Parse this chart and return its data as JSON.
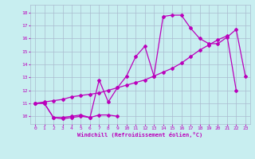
{
  "xlabel": "Windchill (Refroidissement éolien,°C)",
  "bg_color": "#c8eef0",
  "line_color": "#bb00bb",
  "grid_color": "#aabbd0",
  "xlim": [
    -0.5,
    23.5
  ],
  "ylim": [
    9.4,
    18.6
  ],
  "yticks": [
    10,
    11,
    12,
    13,
    14,
    15,
    16,
    17,
    18
  ],
  "xticks": [
    0,
    1,
    2,
    3,
    4,
    5,
    6,
    7,
    8,
    9,
    10,
    11,
    12,
    13,
    14,
    15,
    16,
    17,
    18,
    19,
    20,
    21,
    22,
    23
  ],
  "s1_x": [
    0,
    1,
    2,
    3,
    4,
    5,
    6,
    7,
    8,
    9
  ],
  "s1_y": [
    11.0,
    11.0,
    9.9,
    9.8,
    9.9,
    10.0,
    9.9,
    10.1,
    10.1,
    10.0
  ],
  "s2_x": [
    0,
    1,
    2,
    3,
    4,
    5,
    6,
    7,
    8,
    9,
    10,
    11,
    12,
    13,
    14,
    15,
    16,
    17,
    18,
    19,
    20,
    21,
    22
  ],
  "s2_y": [
    11.0,
    11.1,
    11.2,
    11.3,
    11.5,
    11.6,
    11.7,
    11.8,
    12.0,
    12.2,
    12.4,
    12.6,
    12.8,
    13.1,
    13.4,
    13.7,
    14.1,
    14.6,
    15.1,
    15.5,
    15.9,
    16.2,
    12.0
  ],
  "s3_x": [
    0,
    1,
    2,
    3,
    4,
    5,
    6,
    7,
    8,
    9,
    10,
    11,
    12,
    13,
    14,
    15,
    16,
    17,
    18,
    19,
    20,
    21,
    22,
    23
  ],
  "s3_y": [
    11.0,
    11.0,
    9.9,
    9.9,
    10.0,
    10.1,
    9.9,
    12.8,
    11.1,
    12.2,
    13.1,
    14.6,
    15.4,
    13.1,
    17.7,
    17.8,
    17.8,
    16.8,
    16.0,
    15.6,
    15.6,
    16.1,
    16.7,
    13.1
  ]
}
